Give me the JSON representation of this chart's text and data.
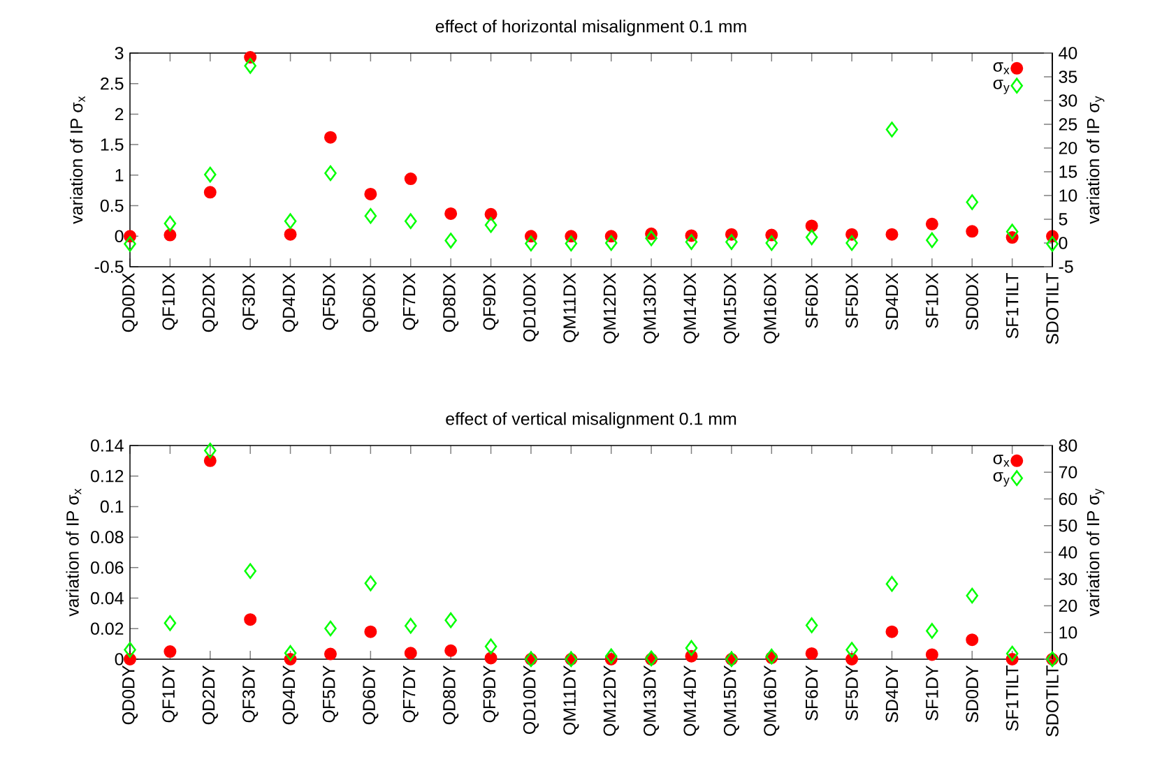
{
  "chart_data": [
    {
      "type": "scatter",
      "title": "effect of horizontal misalignment   0.1 mm",
      "ylabel": "variation of IP σ$_{x}$",
      "y2label": "variation of IP σ$_{y}$",
      "categories": [
        "QD0DX",
        "QF1DX",
        "QD2DX",
        "QF3DX",
        "QD4DX",
        "QF5DX",
        "QD6DX",
        "QF7DX",
        "QD8DX",
        "QF9DX",
        "QD10DX",
        "QM11DX",
        "QM12DX",
        "QM13DX",
        "QM14DX",
        "QM15DX",
        "QM16DX",
        "SF6DX",
        "SF5DX",
        "SD4DX",
        "SF1DX",
        "SD0DX",
        "SF1TILT",
        "SDOTILT"
      ],
      "ylim": [
        -0.5,
        3
      ],
      "yticks": [
        -0.5,
        0,
        0.5,
        1,
        1.5,
        2,
        2.5,
        3
      ],
      "y2lim": [
        -5,
        40
      ],
      "y2ticks": [
        -5,
        0,
        5,
        10,
        15,
        20,
        25,
        30,
        35,
        40
      ],
      "legend": "top right",
      "series": [
        {
          "name": "σ$_{x}$",
          "color": "#ff0000",
          "marker": "circle",
          "values": [
            0,
            0.02,
            0.72,
            2.93,
            0.03,
            1.62,
            0.69,
            0.94,
            0.37,
            0.36,
            0,
            0,
            0,
            0.04,
            0.01,
            0.03,
            0.02,
            0.17,
            0.03,
            0.03,
            0.2,
            0.08,
            -0.02,
            0
          ]
        },
        {
          "name": "σ$_{y}$",
          "color": "#00ff00",
          "marker": "diamond",
          "axis": "y2",
          "values": [
            -0.2,
            4.1,
            14.4,
            37.3,
            4.6,
            14.7,
            5.7,
            4.6,
            0.5,
            3.8,
            -0.1,
            -0.1,
            0,
            1,
            0.2,
            0.2,
            0,
            1.2,
            0,
            23.9,
            0.6,
            8.6,
            2.4,
            -0.2
          ]
        }
      ]
    },
    {
      "type": "scatter",
      "title": "effect of vertical misalignment  0.1 mm",
      "ylabel": "variation of IP σ$_{x}$",
      "y2label": "variation of IP σ$_{y}$",
      "categories": [
        "QD0DY",
        "QF1DY",
        "QD2DY",
        "QF3DY",
        "QD4DY",
        "QF5DY",
        "QD6DY",
        "QF7DY",
        "QD8DY",
        "QF9DY",
        "QD10DY",
        "QM11DY",
        "QM12DY",
        "QM13DY",
        "QM14DY",
        "QM15DY",
        "QM16DY",
        "SF6DY",
        "SF5DY",
        "SD4DY",
        "SF1DY",
        "SD0DY",
        "SF1TILT",
        "SDOTILT"
      ],
      "ylim": [
        0,
        0.14
      ],
      "yticks": [
        0,
        0.02,
        0.04,
        0.06,
        0.08,
        0.1,
        0.12,
        0.14
      ],
      "y2lim": [
        0,
        80
      ],
      "y2ticks": [
        0,
        10,
        20,
        30,
        40,
        50,
        60,
        70,
        80
      ],
      "legend": "top right",
      "series": [
        {
          "name": "σ$_{x}$",
          "color": "#ff0000",
          "marker": "circle",
          "values": [
            0,
            0.005,
            0.13,
            0.026,
            0,
            0.0034,
            0.018,
            0.004,
            0.0056,
            0.0007,
            0,
            0,
            0,
            0,
            0.002,
            0,
            0.001,
            0.0037,
            0,
            0.018,
            0.003,
            0.0127,
            0,
            0
          ]
        },
        {
          "name": "σ$_{y}$",
          "color": "#00ff00",
          "marker": "diamond",
          "axis": "y2",
          "values": [
            3.5,
            13.5,
            78.1,
            33,
            2.3,
            11.5,
            28.4,
            12.5,
            14.6,
            4.8,
            0,
            0,
            1.1,
            0.3,
            4.2,
            0,
            1,
            12.7,
            3.5,
            28.2,
            10.6,
            23.8,
            2.1,
            0
          ]
        }
      ]
    }
  ]
}
